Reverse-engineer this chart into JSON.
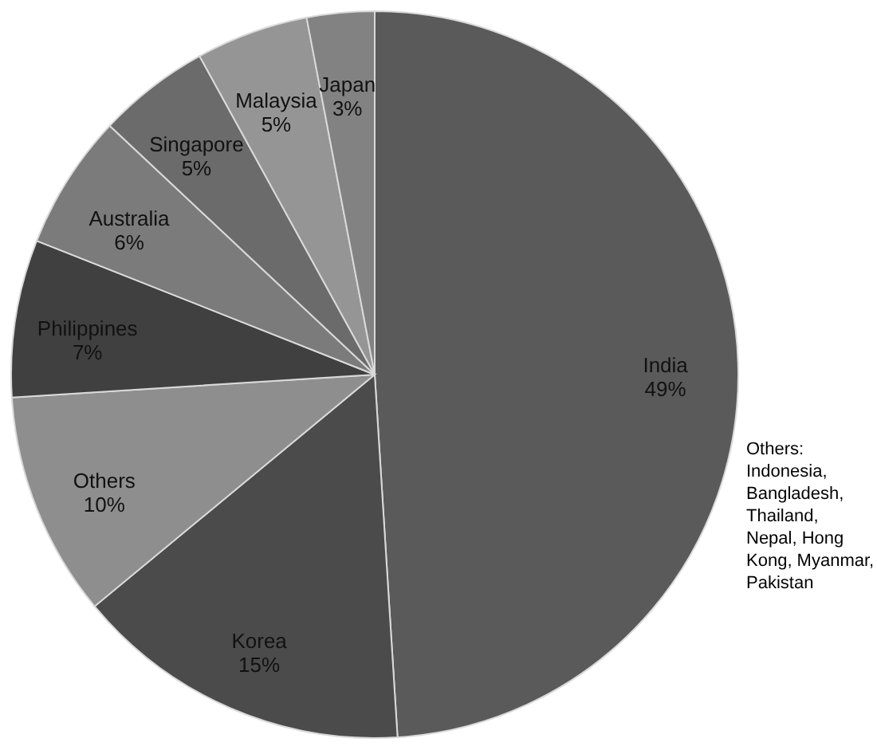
{
  "chart_data": {
    "type": "pie",
    "categories": [
      "India",
      "Korea",
      "Others",
      "Philippines",
      "Australia",
      "Singapore",
      "Malaysia",
      "Japan"
    ],
    "values": [
      49,
      15,
      10,
      7,
      6,
      5,
      5,
      3
    ],
    "value_labels": [
      "49%",
      "15%",
      "10%",
      "7%",
      "6%",
      "5%",
      "5%",
      "3%"
    ],
    "colors": [
      "#5a5a5a",
      "#4b4b4b",
      "#8e8e8e",
      "#404040",
      "#7b7b7b",
      "#6b6b6b",
      "#959595",
      "#828282"
    ],
    "annotations": [
      "Others: Indonesia, Bangladesh, Thailand, Nepal, Hong Kong, Myanmar, Pakistan"
    ]
  }
}
